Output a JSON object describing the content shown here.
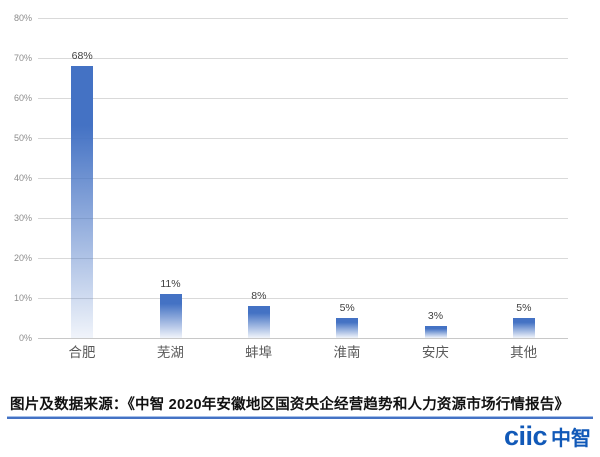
{
  "chart_data": {
    "type": "bar",
    "title": "",
    "categories": [
      "合肥",
      "芜湖",
      "蚌埠",
      "淮南",
      "安庆",
      "其他"
    ],
    "values": [
      68,
      11,
      8,
      5,
      3,
      5
    ],
    "data_labels": [
      "68%",
      "11%",
      "8%",
      "5%",
      "3%",
      "5%"
    ],
    "xlabel": "",
    "ylabel": "",
    "ylim": [
      0,
      80
    ],
    "y_tick_step": 10,
    "y_tick_labels": [
      "0%",
      "10%",
      "20%",
      "30%",
      "40%",
      "50%",
      "60%",
      "70%",
      "80%"
    ],
    "grid": true,
    "legend": "none",
    "bar_color": "#4472C4",
    "bar_fade_color": "rgba(68,114,196,0.08)",
    "gridline_color": "#D9D9D9"
  },
  "caption": {
    "text": "图片及数据来源：《中智 2020年安徽地区国资央企经营趋势和人力资源市场行情报告》",
    "divider_color": "#4472C4",
    "divider_light_color": "#A6C0EA"
  },
  "logo": {
    "latin": "ciic",
    "cjk": "中智",
    "color": "#1159B8"
  }
}
